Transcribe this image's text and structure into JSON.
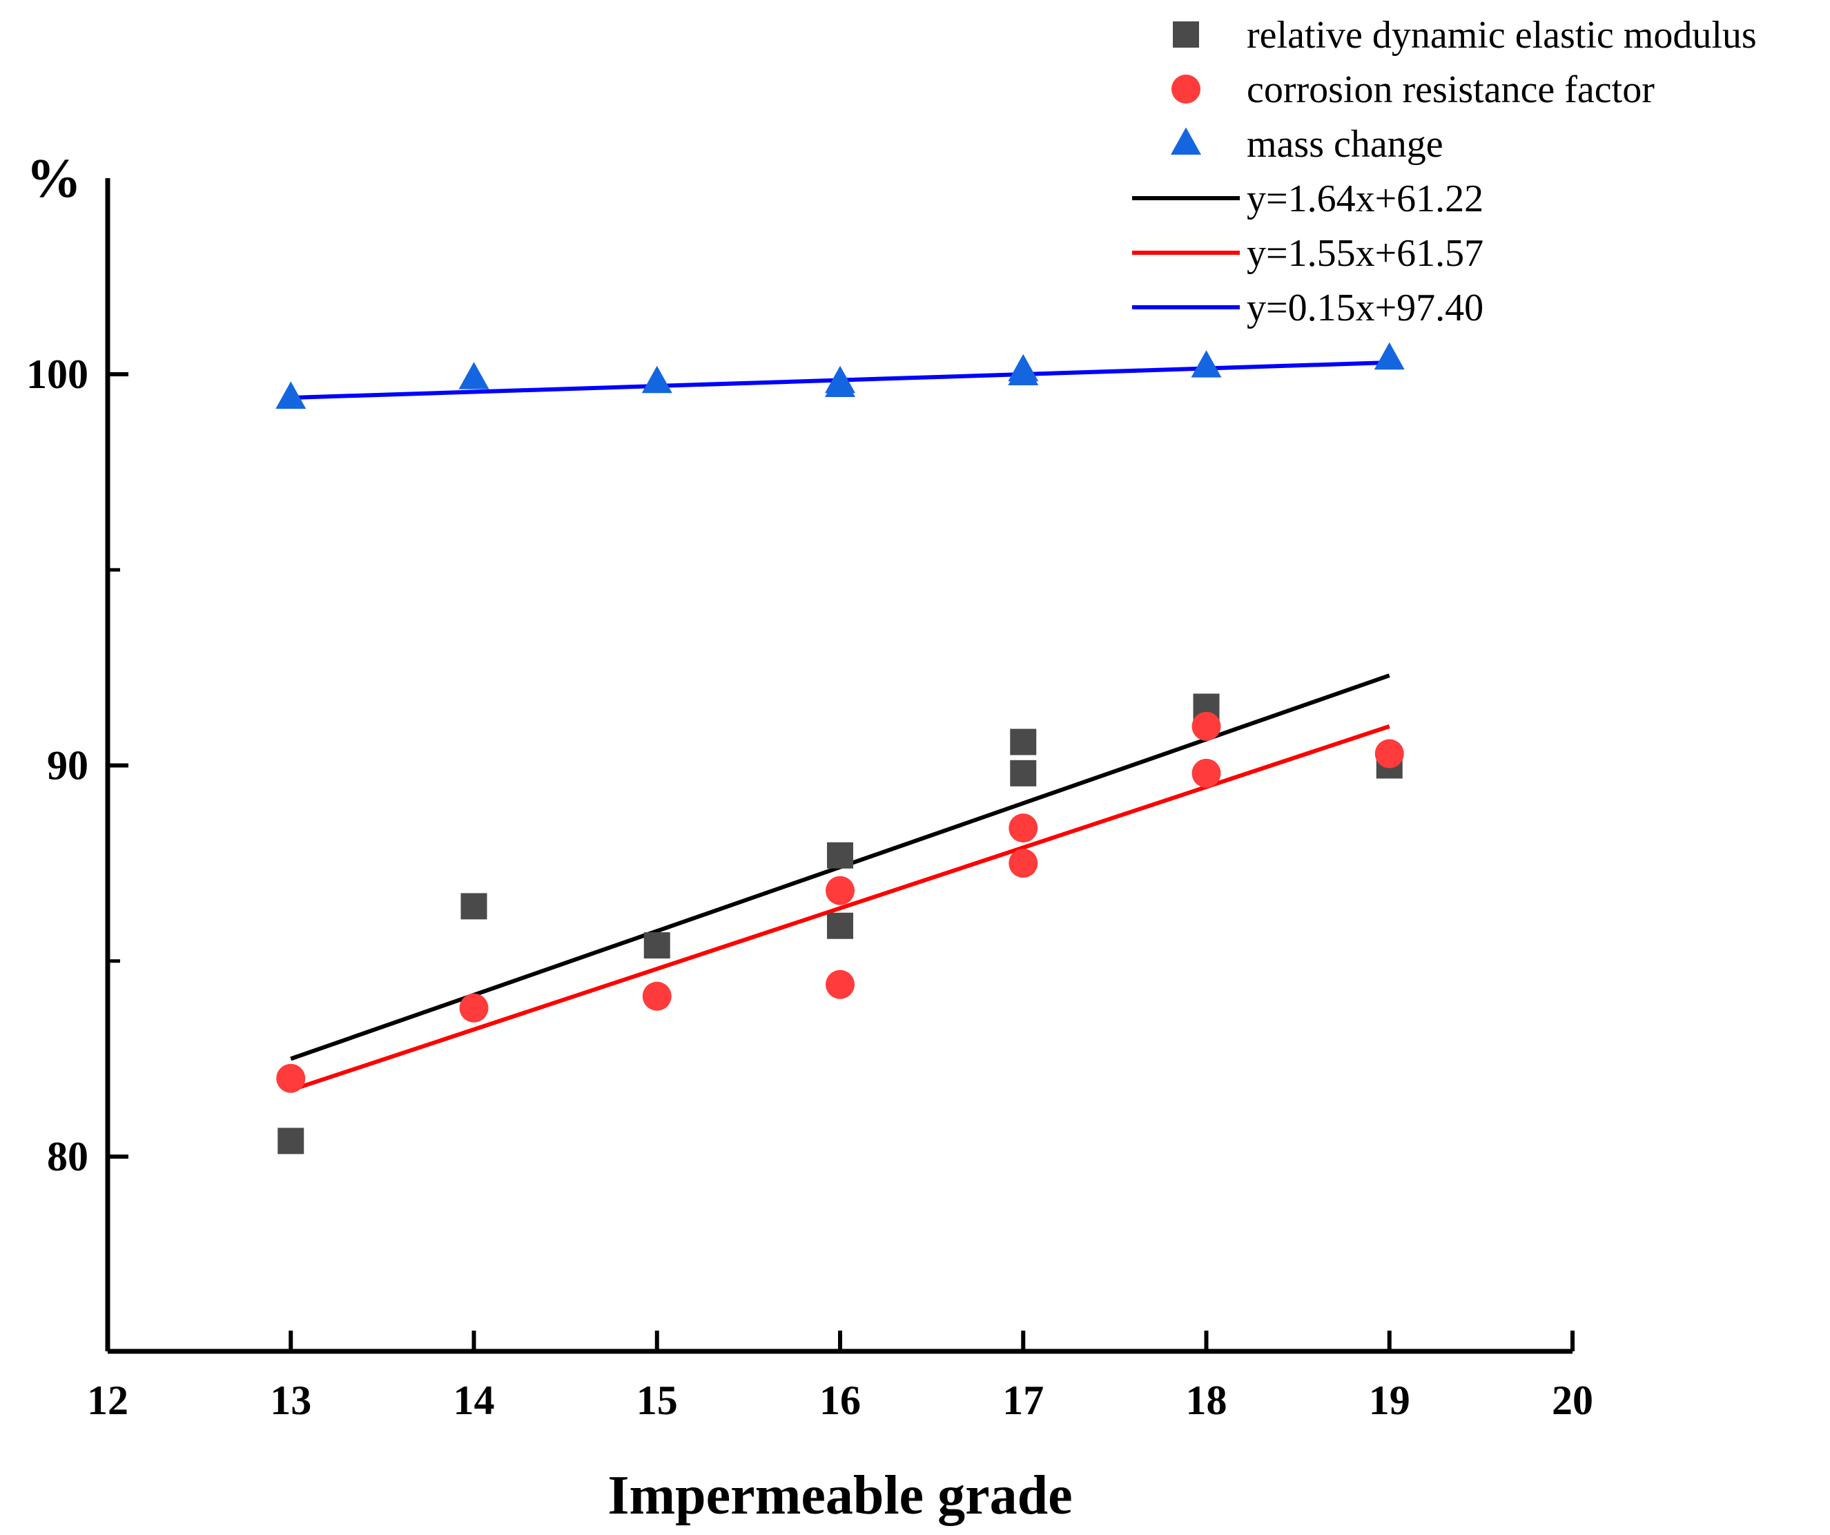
{
  "chart_data": {
    "type": "scatter",
    "title": "",
    "xlabel": "Impermeable grade",
    "ylabel": "%",
    "xlim": [
      12,
      20
    ],
    "ylim": [
      75,
      105
    ],
    "xticks": [
      12,
      13,
      14,
      15,
      16,
      17,
      18,
      19,
      20
    ],
    "yticks_labeled": [
      80,
      90,
      100
    ],
    "yticks_minor": [
      85,
      95
    ],
    "legend_position": "top-right",
    "series": [
      {
        "name": "relative dynamic elastic modulus",
        "marker": "square",
        "color": "#4a4a4a",
        "points": [
          {
            "x": 13,
            "y": 80.4
          },
          {
            "x": 14,
            "y": 86.4
          },
          {
            "x": 15,
            "y": 85.4
          },
          {
            "x": 16,
            "y": 87.7
          },
          {
            "x": 16,
            "y": 85.9
          },
          {
            "x": 17,
            "y": 90.6
          },
          {
            "x": 17,
            "y": 89.8
          },
          {
            "x": 18,
            "y": 91.5
          },
          {
            "x": 19,
            "y": 90.0
          }
        ]
      },
      {
        "name": "corrosion resistance factor",
        "marker": "circle",
        "color": "#ff3b3b",
        "points": [
          {
            "x": 13,
            "y": 82.0
          },
          {
            "x": 14,
            "y": 83.8
          },
          {
            "x": 15,
            "y": 84.1
          },
          {
            "x": 16,
            "y": 86.8
          },
          {
            "x": 16,
            "y": 84.4
          },
          {
            "x": 17,
            "y": 88.4
          },
          {
            "x": 17,
            "y": 87.5
          },
          {
            "x": 18,
            "y": 91.0
          },
          {
            "x": 18,
            "y": 89.8
          },
          {
            "x": 19,
            "y": 90.3
          }
        ]
      },
      {
        "name": "mass change",
        "marker": "triangle",
        "color": "#1466e0",
        "points": [
          {
            "x": 13,
            "y": 99.4
          },
          {
            "x": 14,
            "y": 99.9
          },
          {
            "x": 15,
            "y": 99.8
          },
          {
            "x": 16,
            "y": 99.8
          },
          {
            "x": 16,
            "y": 99.7
          },
          {
            "x": 17,
            "y": 100.1
          },
          {
            "x": 17,
            "y": 100.0
          },
          {
            "x": 18,
            "y": 100.2
          },
          {
            "x": 19,
            "y": 100.4
          }
        ]
      }
    ],
    "fits": [
      {
        "name": "y=1.64x+61.22",
        "color": "#000000",
        "y_start": 82.5,
        "y_end": 92.3,
        "x_range": [
          13,
          19
        ]
      },
      {
        "name": "y=1.55x+61.57",
        "color": "#ff0000",
        "y_start": 81.7,
        "y_end": 91.0,
        "x_range": [
          13,
          19
        ]
      },
      {
        "name": "y=0.15x+97.40",
        "color": "#0000ff",
        "y_start": 99.4,
        "y_end": 100.3,
        "x_range": [
          13,
          19
        ]
      }
    ]
  }
}
